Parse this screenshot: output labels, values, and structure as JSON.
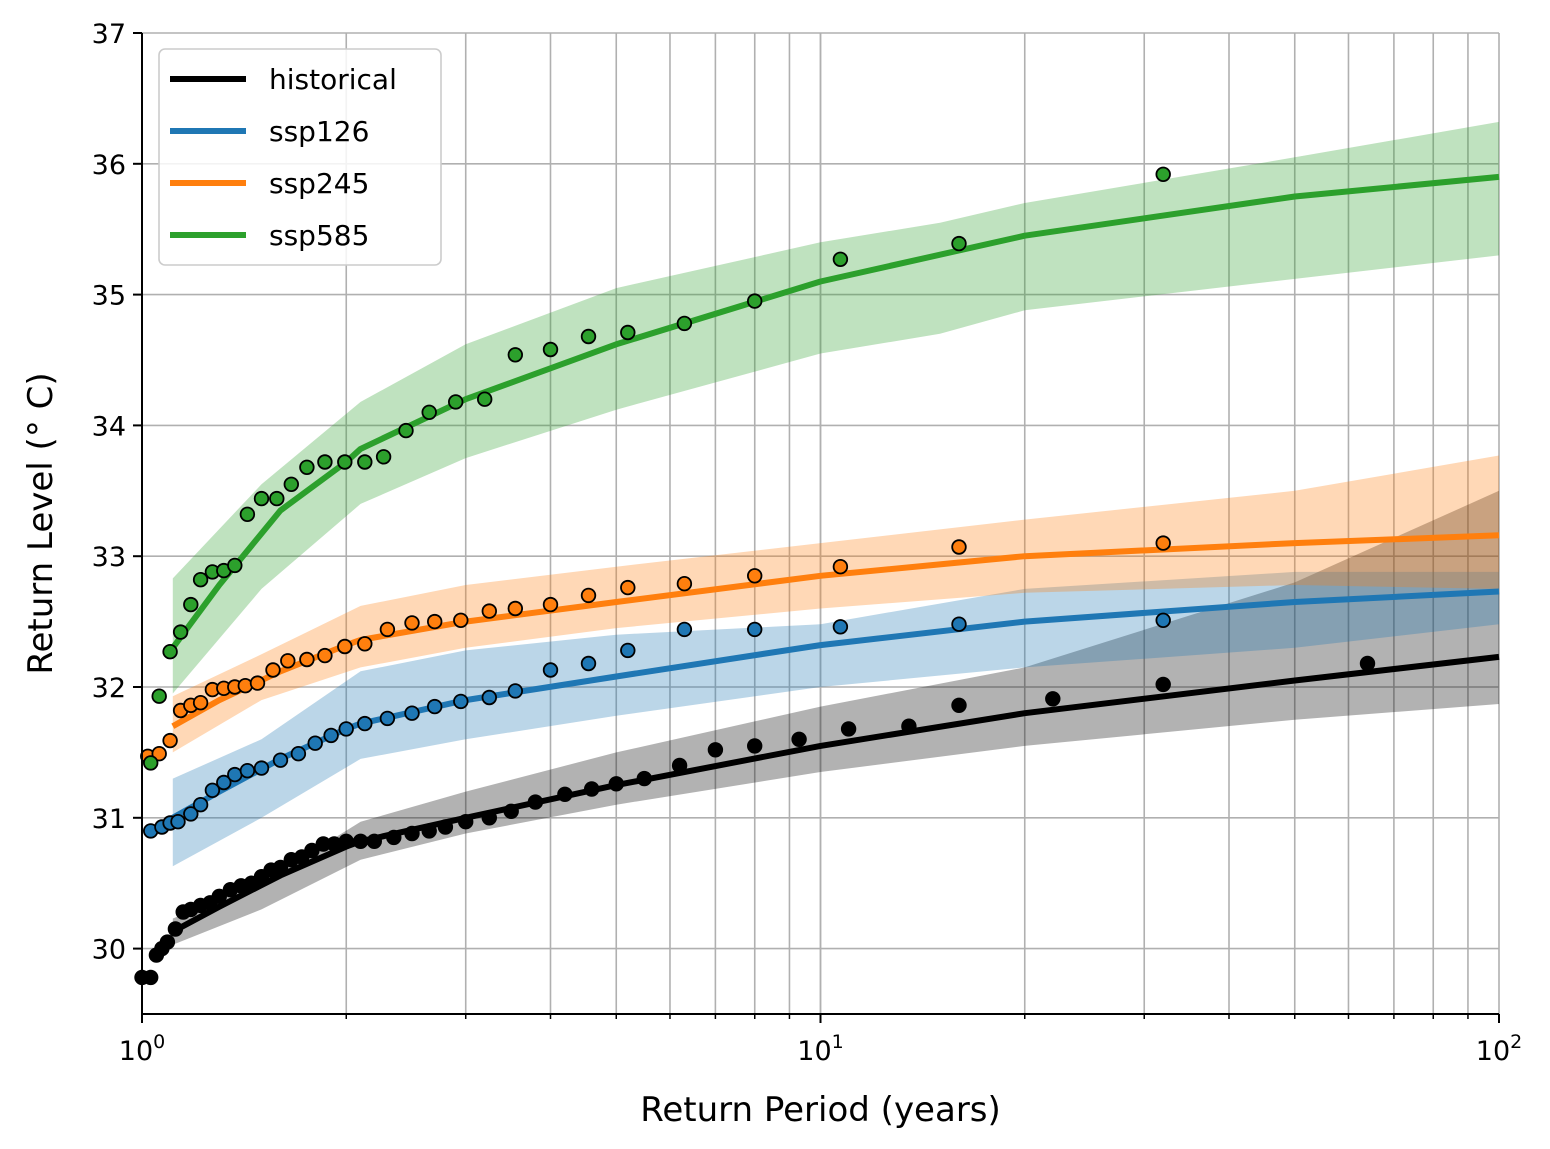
{
  "chart_data": {
    "type": "line",
    "title": "",
    "xlabel": "Return Period (years)",
    "ylabel": "Return Level (° C)",
    "xscale": "log",
    "xlim": [
      1,
      100
    ],
    "ylim": [
      29.5,
      37
    ],
    "grid": true,
    "legend_position": "top-left",
    "xticks": [
      {
        "value": 1,
        "base": "10",
        "exp": "0"
      },
      {
        "value": 10,
        "base": "10",
        "exp": "1"
      },
      {
        "value": 100,
        "base": "10",
        "exp": "2"
      }
    ],
    "yticks": [
      30,
      31,
      32,
      33,
      34,
      35,
      36,
      37
    ],
    "series": [
      {
        "name": "historical",
        "color": "#000000",
        "band_color": "#000000",
        "band_opacity": 0.3,
        "fit": {
          "x": [
            1.11,
            1.3,
            1.6,
            2.0,
            2.1,
            3,
            5,
            10,
            20,
            50,
            100
          ],
          "y": [
            30.13,
            30.32,
            30.56,
            30.78,
            30.82,
            31.0,
            31.25,
            31.55,
            31.8,
            32.05,
            32.23
          ]
        },
        "band": {
          "x": [
            1.11,
            1.5,
            2.1,
            3,
            5,
            10,
            20,
            50,
            100
          ],
          "lower": [
            30.03,
            30.3,
            30.68,
            30.88,
            31.1,
            31.35,
            31.55,
            31.75,
            31.87
          ],
          "upper": [
            30.23,
            30.5,
            30.97,
            31.2,
            31.5,
            31.85,
            32.15,
            32.8,
            33.5
          ]
        },
        "points": {
          "x": [
            1.0,
            1.03,
            1.05,
            1.07,
            1.09,
            1.12,
            1.15,
            1.18,
            1.22,
            1.26,
            1.3,
            1.35,
            1.4,
            1.45,
            1.5,
            1.55,
            1.6,
            1.66,
            1.72,
            1.78,
            1.85,
            1.92,
            2.0,
            2.1,
            2.2,
            2.35,
            2.5,
            2.65,
            2.8,
            3.0,
            3.25,
            3.5,
            3.8,
            4.2,
            4.6,
            5.0,
            5.5,
            6.2,
            7.0,
            8.0,
            9.3,
            11.0,
            13.5,
            16.0,
            22.0,
            32.0,
            64.0
          ],
          "y": [
            29.78,
            29.78,
            29.95,
            30.0,
            30.05,
            30.15,
            30.28,
            30.3,
            30.33,
            30.35,
            30.4,
            30.45,
            30.48,
            30.5,
            30.55,
            30.6,
            30.62,
            30.68,
            30.7,
            30.75,
            30.8,
            30.8,
            30.82,
            30.82,
            30.82,
            30.85,
            30.88,
            30.9,
            30.93,
            30.97,
            31.0,
            31.05,
            31.12,
            31.18,
            31.22,
            31.26,
            31.3,
            31.4,
            31.52,
            31.55,
            31.6,
            31.68,
            31.7,
            31.86,
            31.91,
            32.02,
            32.18
          ]
        }
      },
      {
        "name": "ssp126",
        "color": "#1f77b4",
        "band_color": "#1f77b4",
        "band_opacity": 0.3,
        "fit": {
          "x": [
            1.11,
            1.3,
            1.6,
            2.0,
            2.1,
            3,
            5,
            10,
            20,
            50,
            100
          ],
          "y": [
            31.0,
            31.2,
            31.45,
            31.68,
            31.72,
            31.9,
            32.08,
            32.32,
            32.5,
            32.65,
            32.73
          ]
        },
        "band": {
          "x": [
            1.11,
            1.5,
            2.1,
            3,
            5,
            10,
            20,
            50,
            100
          ],
          "lower": [
            30.63,
            31.0,
            31.45,
            31.6,
            31.78,
            32.0,
            32.15,
            32.3,
            32.48
          ],
          "upper": [
            31.3,
            31.6,
            32.12,
            32.28,
            32.4,
            32.48,
            32.75,
            32.88,
            32.88
          ]
        },
        "points": {
          "x": [
            1.03,
            1.07,
            1.1,
            1.13,
            1.18,
            1.22,
            1.27,
            1.32,
            1.37,
            1.43,
            1.5,
            1.6,
            1.7,
            1.8,
            1.9,
            2.0,
            2.13,
            2.3,
            2.5,
            2.7,
            2.95,
            3.25,
            3.55,
            4.0,
            4.55,
            5.2,
            6.3,
            8.0,
            10.7,
            16.0,
            32.0
          ],
          "y": [
            30.9,
            30.93,
            30.96,
            30.97,
            31.03,
            31.1,
            31.21,
            31.27,
            31.33,
            31.36,
            31.38,
            31.44,
            31.49,
            31.57,
            31.63,
            31.68,
            31.72,
            31.76,
            31.8,
            31.85,
            31.89,
            31.92,
            31.97,
            32.13,
            32.18,
            32.28,
            32.44,
            32.44,
            32.46,
            32.48,
            32.51
          ]
        }
      },
      {
        "name": "ssp245",
        "color": "#ff7f0e",
        "band_color": "#ff7f0e",
        "band_opacity": 0.3,
        "fit": {
          "x": [
            1.11,
            1.3,
            1.6,
            2.0,
            2.1,
            3,
            5,
            10,
            20,
            50,
            100
          ],
          "y": [
            31.7,
            31.9,
            32.12,
            32.32,
            32.36,
            32.5,
            32.65,
            32.85,
            33.0,
            33.1,
            33.16
          ]
        },
        "band": {
          "x": [
            1.11,
            1.5,
            2.1,
            3,
            5,
            10,
            20,
            50,
            100
          ],
          "lower": [
            31.5,
            31.9,
            32.15,
            32.3,
            32.45,
            32.6,
            32.72,
            32.78,
            32.75
          ],
          "upper": [
            31.93,
            32.25,
            32.62,
            32.78,
            32.92,
            33.1,
            33.28,
            33.5,
            33.77
          ]
        },
        "points": {
          "x": [
            1.02,
            1.06,
            1.1,
            1.14,
            1.18,
            1.22,
            1.27,
            1.32,
            1.37,
            1.42,
            1.48,
            1.56,
            1.64,
            1.75,
            1.86,
            1.99,
            2.13,
            2.3,
            2.5,
            2.7,
            2.95,
            3.25,
            3.55,
            4.0,
            4.55,
            5.2,
            6.3,
            8.0,
            10.7,
            16.0,
            32.0
          ],
          "y": [
            31.47,
            31.49,
            31.59,
            31.82,
            31.86,
            31.88,
            31.98,
            31.99,
            32.0,
            32.01,
            32.03,
            32.13,
            32.2,
            32.21,
            32.24,
            32.31,
            32.33,
            32.44,
            32.49,
            32.5,
            32.51,
            32.58,
            32.6,
            32.63,
            32.7,
            32.76,
            32.79,
            32.85,
            32.92,
            33.07,
            33.1
          ]
        }
      },
      {
        "name": "ssp585",
        "color": "#2ca02c",
        "band_color": "#2ca02c",
        "band_opacity": 0.3,
        "fit": {
          "x": [
            1.11,
            1.3,
            1.6,
            2.0,
            2.1,
            3,
            5,
            10,
            20,
            50,
            100
          ],
          "y": [
            32.3,
            32.78,
            33.35,
            33.72,
            33.82,
            34.2,
            34.62,
            35.1,
            35.45,
            35.75,
            35.9
          ]
        },
        "band": {
          "x": [
            1.11,
            1.5,
            2.1,
            3,
            5,
            10,
            15,
            20,
            50,
            100
          ],
          "lower": [
            31.95,
            32.75,
            33.4,
            33.75,
            34.12,
            34.55,
            34.7,
            34.88,
            35.12,
            35.3
          ],
          "upper": [
            32.83,
            33.55,
            34.18,
            34.62,
            35.05,
            35.4,
            35.55,
            35.7,
            36.05,
            36.32
          ]
        },
        "points": {
          "x": [
            1.03,
            1.06,
            1.1,
            1.14,
            1.18,
            1.22,
            1.27,
            1.32,
            1.37,
            1.43,
            1.5,
            1.58,
            1.66,
            1.75,
            1.86,
            1.99,
            2.13,
            2.27,
            2.45,
            2.65,
            2.9,
            3.2,
            3.55,
            4.0,
            4.55,
            5.2,
            6.3,
            8.0,
            10.7,
            16.0,
            32.0
          ],
          "y": [
            31.42,
            31.93,
            32.27,
            32.42,
            32.63,
            32.82,
            32.88,
            32.89,
            32.93,
            33.32,
            33.44,
            33.44,
            33.55,
            33.68,
            33.72,
            33.72,
            33.72,
            33.76,
            33.96,
            34.1,
            34.18,
            34.2,
            34.54,
            34.58,
            34.68,
            34.71,
            34.78,
            34.95,
            35.27,
            35.39,
            35.92
          ]
        }
      }
    ]
  }
}
